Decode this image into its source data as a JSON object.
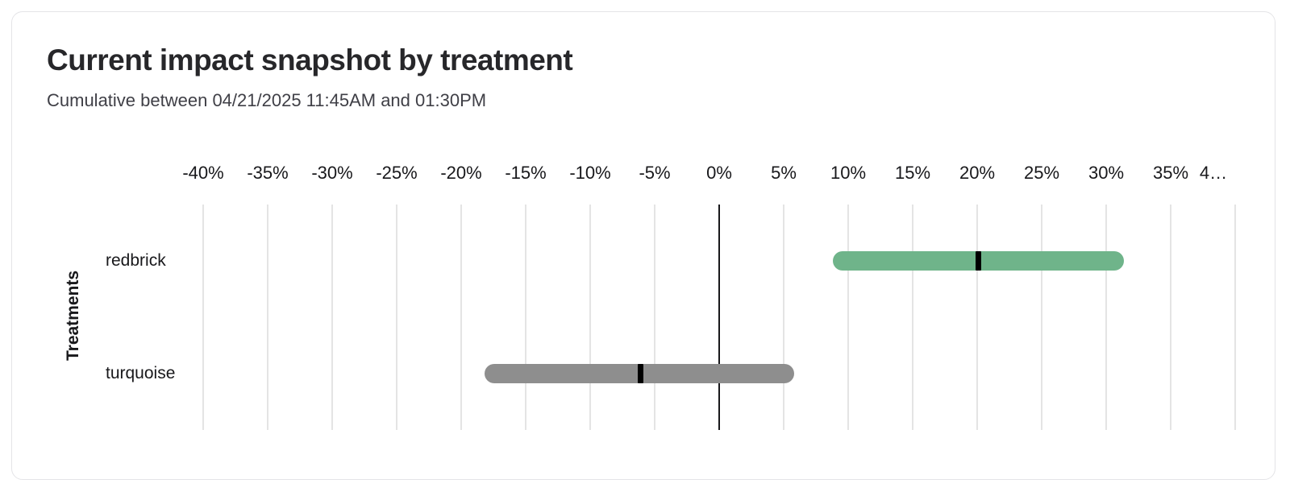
{
  "card": {
    "border_color": "#e4e4e7"
  },
  "chart_data": {
    "type": "bar",
    "variant": "horizontal-range-bar-with-point-estimate",
    "title": "Current impact snapshot by treatment",
    "subtitle": "Cumulative between 04/21/2025 11:45AM and 01:30PM",
    "xlabel": "",
    "ylabel": "Treatments",
    "units": "%",
    "categories": [
      "redbrick",
      "turquoise"
    ],
    "series": [
      {
        "name": "redbrick",
        "low": 8.8,
        "point": 20.1,
        "high": 31.4,
        "color": "#6fb48a"
      },
      {
        "name": "turquoise",
        "low": -18.2,
        "point": -6.1,
        "high": 5.8,
        "color": "#8e8e8e"
      }
    ],
    "xlim": [
      -40,
      40
    ],
    "x_tick_step": 5,
    "x_ticks": [
      {
        "value": -40,
        "label": "-40%"
      },
      {
        "value": -35,
        "label": "-35%"
      },
      {
        "value": -30,
        "label": "-30%"
      },
      {
        "value": -25,
        "label": "-25%"
      },
      {
        "value": -20,
        "label": "-20%"
      },
      {
        "value": -15,
        "label": "-15%"
      },
      {
        "value": -10,
        "label": "-10%"
      },
      {
        "value": -5,
        "label": "-5%"
      },
      {
        "value": 0,
        "label": "0%"
      },
      {
        "value": 5,
        "label": "5%"
      },
      {
        "value": 10,
        "label": "10%"
      },
      {
        "value": 15,
        "label": "15%"
      },
      {
        "value": 20,
        "label": "20%"
      },
      {
        "value": 25,
        "label": "25%"
      },
      {
        "value": 30,
        "label": "30%"
      },
      {
        "value": 35,
        "label": "35%"
      },
      {
        "value": 40,
        "label": "4…",
        "truncated": true
      }
    ],
    "grid": true,
    "legend": "none",
    "gridline_color": "#e4e4e4",
    "zero_line_color": "#18181b",
    "marker_color": "#000000"
  }
}
